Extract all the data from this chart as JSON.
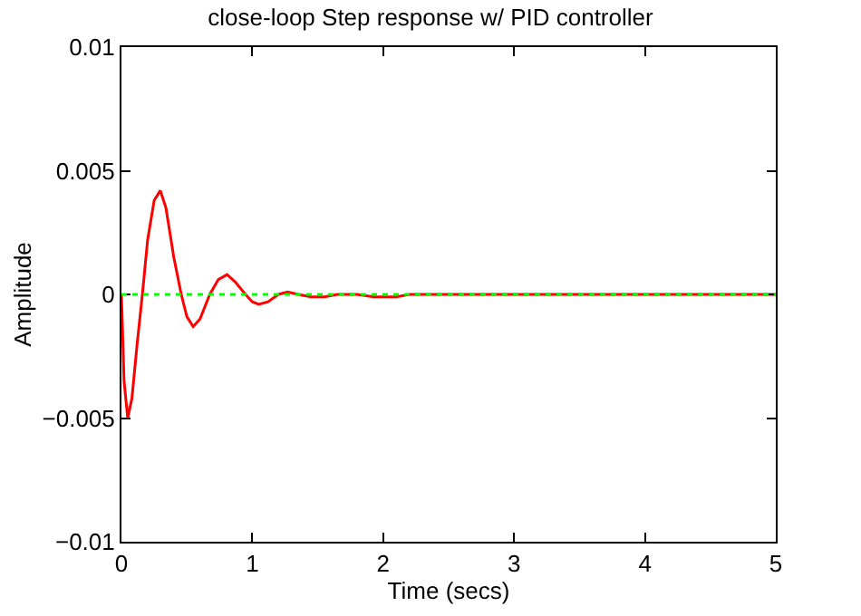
{
  "chart_data": {
    "type": "line",
    "title": "close-loop Step response w/ PID controller",
    "xlabel": "Time (secs)",
    "ylabel": "Amplitude",
    "xlim": [
      0,
      5
    ],
    "xticks": [
      0,
      1,
      2,
      3,
      4,
      5
    ],
    "ylim": [
      -0.01,
      0.01
    ],
    "yticks": [
      -0.01,
      -0.005,
      0,
      0.005,
      0.01
    ],
    "legend": false,
    "series": [
      {
        "color": "#ff0000",
        "x": [
          0,
          0.02,
          0.048,
          0.08,
          0.12,
          0.16,
          0.2,
          0.25,
          0.297,
          0.34,
          0.4,
          0.457,
          0.5,
          0.548,
          0.6,
          0.675,
          0.74,
          0.807,
          0.87,
          0.948,
          1.0,
          1.05,
          1.12,
          1.2,
          1.27,
          1.35,
          1.45,
          1.55,
          1.65,
          1.8,
          1.93,
          2.1,
          2.2,
          3,
          4,
          5
        ],
        "values": [
          0,
          -0.0035,
          -0.005,
          -0.0042,
          -0.002,
          0,
          0.0022,
          0.0038,
          0.0042,
          0.0035,
          0.0015,
          0,
          -0.0009,
          -0.0013,
          -0.001,
          0,
          0.0006,
          0.0008,
          0.0005,
          0,
          -0.0003,
          -0.0004,
          -0.0003,
          0,
          0.0001,
          0,
          -0.0001,
          -0.0001,
          0,
          0,
          -0.0001,
          -0.0001,
          0,
          0,
          0,
          0
        ]
      }
    ],
    "ref_lines": [
      {
        "axis": "y",
        "value": 0,
        "color": "#00ff00",
        "line_style": "dotted"
      }
    ]
  }
}
